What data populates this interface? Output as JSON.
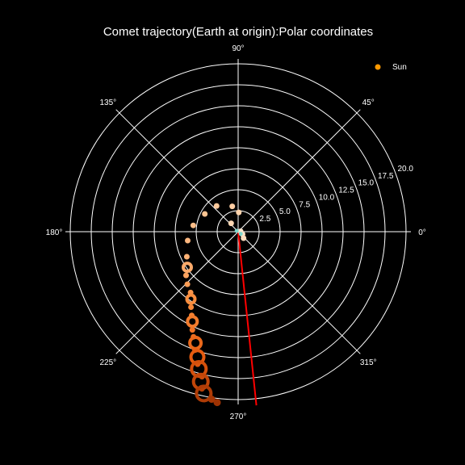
{
  "chart_data": {
    "type": "scatter",
    "coordinate_system": "polar",
    "title": "Comet trajectory(Earth at origin):Polar coordinates",
    "radial_range": [
      0,
      20
    ],
    "radial_ticks": [
      "2.5",
      "5.0",
      "7.5",
      "10.0",
      "12.5",
      "15.0",
      "17.5",
      "20.0"
    ],
    "angular_ticks": [
      "0°",
      "45°",
      "90°",
      "135°",
      "180°",
      "225°",
      "270°",
      "315°"
    ],
    "grid": true,
    "legend": {
      "position": "top-right"
    },
    "series": [
      {
        "name": "Sun",
        "color": "#ff9900",
        "points": []
      },
      {
        "kind": "comet",
        "color_scale": [
          "#ffe7cf",
          "#fdc08c",
          "#f98b3a",
          "#e4590f",
          "#9d3203"
        ],
        "points": [
          {
            "r": 0.3,
            "theta": 10,
            "size": 3
          },
          {
            "r": 0.6,
            "theta": 330,
            "size": 3
          },
          {
            "r": 1.0,
            "theta": 310,
            "size": 3
          },
          {
            "r": 1.3,
            "theta": 130,
            "size": 3
          },
          {
            "r": 2.3,
            "theta": 88,
            "size": 3
          },
          {
            "r": 3.1,
            "theta": 103,
            "size": 3
          },
          {
            "r": 4.0,
            "theta": 130,
            "size": 3
          },
          {
            "r": 4.5,
            "theta": 152,
            "size": 3
          },
          {
            "r": 5.4,
            "theta": 172,
            "size": 3
          },
          {
            "r": 6.1,
            "theta": 190,
            "size": 3
          },
          {
            "r": 6.8,
            "theta": 206,
            "size": 3
          },
          {
            "r": 7.4,
            "theta": 215,
            "size": 5
          },
          {
            "r": 8.1,
            "theta": 220,
            "size": 3
          },
          {
            "r": 8.7,
            "theta": 226,
            "size": 3
          },
          {
            "r": 9.2,
            "theta": 232,
            "size": 3
          },
          {
            "r": 9.8,
            "theta": 235,
            "size": 5
          },
          {
            "r": 10.6,
            "theta": 238,
            "size": 3
          },
          {
            "r": 11.4,
            "theta": 241,
            "size": 3
          },
          {
            "r": 12.0,
            "theta": 243,
            "size": 6
          },
          {
            "r": 12.9,
            "theta": 245,
            "size": 3
          },
          {
            "r": 13.6,
            "theta": 247,
            "size": 3
          },
          {
            "r": 14.2,
            "theta": 249,
            "size": 7
          },
          {
            "r": 15.0,
            "theta": 250,
            "size": 3
          },
          {
            "r": 15.7,
            "theta": 252,
            "size": 8
          },
          {
            "r": 16.5,
            "theta": 253,
            "size": 3
          },
          {
            "r": 17.0,
            "theta": 254,
            "size": 9
          },
          {
            "r": 17.8,
            "theta": 256,
            "size": 3
          },
          {
            "r": 18.4,
            "theta": 256,
            "size": 9
          },
          {
            "r": 19.2,
            "theta": 257,
            "size": 3
          },
          {
            "r": 19.7,
            "theta": 258,
            "size": 9
          },
          {
            "r": 20.2,
            "theta": 261,
            "size": 4
          },
          {
            "r": 20.5,
            "theta": 263,
            "size": 4
          }
        ]
      },
      {
        "kind": "earth-sun-line",
        "color": "#ff0000",
        "points": [
          {
            "r": 0,
            "theta": 0
          },
          {
            "r": 20.8,
            "theta": 276
          }
        ]
      },
      {
        "kind": "marker",
        "color": "#7fd8ce",
        "points": [
          {
            "r": 0.2,
            "theta": 150
          },
          {
            "r": 0.4,
            "theta": 320
          }
        ]
      }
    ]
  }
}
